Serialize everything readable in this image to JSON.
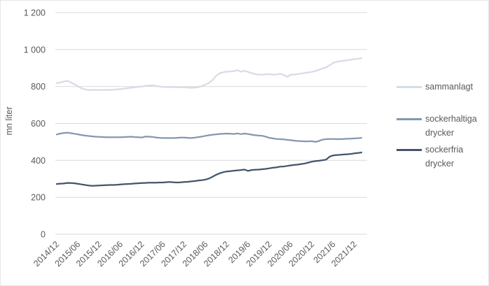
{
  "chart_data": {
    "type": "line",
    "title": "",
    "ylabel": "mn liter",
    "ylim": [
      0,
      1200
    ],
    "y_tick_values": [
      1200,
      1000,
      800,
      600,
      400,
      200,
      0
    ],
    "y_tick_labels": [
      "1 200",
      "1 000",
      "800",
      "600",
      "400",
      "200",
      "0"
    ],
    "x_unit": "month",
    "x_start": "2014/12",
    "x_end": "2022/02",
    "x_tick_months": [
      0,
      6,
      12,
      18,
      24,
      30,
      36,
      42,
      48,
      54,
      60,
      66,
      72,
      78,
      84
    ],
    "x_tick_labels": [
      "2014/12",
      "2015/06",
      "2015/12",
      "2016/06",
      "2016/12",
      "2017/06",
      "2017/12",
      "2018/06",
      "2018/12",
      "2019/6",
      "2019/12",
      "2020/06",
      "2020/12",
      "2021/6",
      "2021/12"
    ],
    "grid": "horizontal",
    "grid_color": "#D9D9D9",
    "axis_text_color": "#595959",
    "legend_position": "right",
    "series": [
      {
        "name": "sammanlagt",
        "color": "#D6DCE5",
        "values": [
          818,
          822,
          827,
          830,
          822,
          812,
          800,
          790,
          784,
          781,
          781,
          782,
          781,
          781,
          782,
          781,
          783,
          784,
          786,
          788,
          791,
          793,
          796,
          798,
          800,
          803,
          805,
          806,
          803,
          800,
          798,
          797,
          797,
          797,
          796,
          796,
          796,
          794,
          793,
          794,
          797,
          803,
          810,
          820,
          836,
          858,
          872,
          877,
          880,
          881,
          883,
          888,
          880,
          885,
          879,
          872,
          867,
          865,
          864,
          866,
          867,
          865,
          864,
          869,
          863,
          852,
          863,
          865,
          867,
          870,
          873,
          876,
          879,
          884,
          890,
          897,
          903,
          915,
          928,
          933,
          937,
          940,
          942,
          945,
          948,
          950,
          953
        ]
      },
      {
        "name": "sockerhaltiga drycker",
        "color": "#8497B0",
        "values": [
          540,
          545,
          548,
          550,
          547,
          544,
          541,
          537,
          534,
          532,
          530,
          528,
          527,
          526,
          525,
          525,
          525,
          525,
          525,
          526,
          527,
          528,
          526,
          525,
          524,
          529,
          528,
          527,
          524,
          522,
          521,
          521,
          521,
          521,
          522,
          523,
          523,
          522,
          521,
          523,
          526,
          529,
          533,
          536,
          539,
          541,
          543,
          544,
          545,
          544,
          543,
          546,
          542,
          545,
          543,
          539,
          536,
          534,
          533,
          528,
          522,
          519,
          516,
          515,
          514,
          511,
          509,
          507,
          505,
          504,
          503,
          503,
          504,
          500,
          505,
          512,
          515,
          516,
          516,
          515,
          515,
          516,
          517,
          518,
          519,
          520,
          522
        ]
      },
      {
        "name": "sockerfria drycker",
        "color": "#44546A",
        "values": [
          272,
          274,
          275,
          278,
          277,
          276,
          273,
          270,
          267,
          264,
          262,
          263,
          264,
          265,
          266,
          267,
          267,
          268,
          270,
          271,
          272,
          273,
          275,
          276,
          277,
          278,
          279,
          279,
          279,
          280,
          280,
          282,
          283,
          281,
          280,
          281,
          283,
          284,
          286,
          288,
          291,
          293,
          296,
          302,
          312,
          322,
          330,
          336,
          340,
          342,
          344,
          346,
          348,
          350,
          343,
          348,
          349,
          350,
          352,
          354,
          357,
          360,
          362,
          366,
          367,
          370,
          373,
          375,
          377,
          380,
          383,
          388,
          393,
          396,
          398,
          401,
          404,
          420,
          427,
          429,
          430,
          432,
          433,
          435,
          438,
          440,
          443
        ]
      }
    ]
  }
}
